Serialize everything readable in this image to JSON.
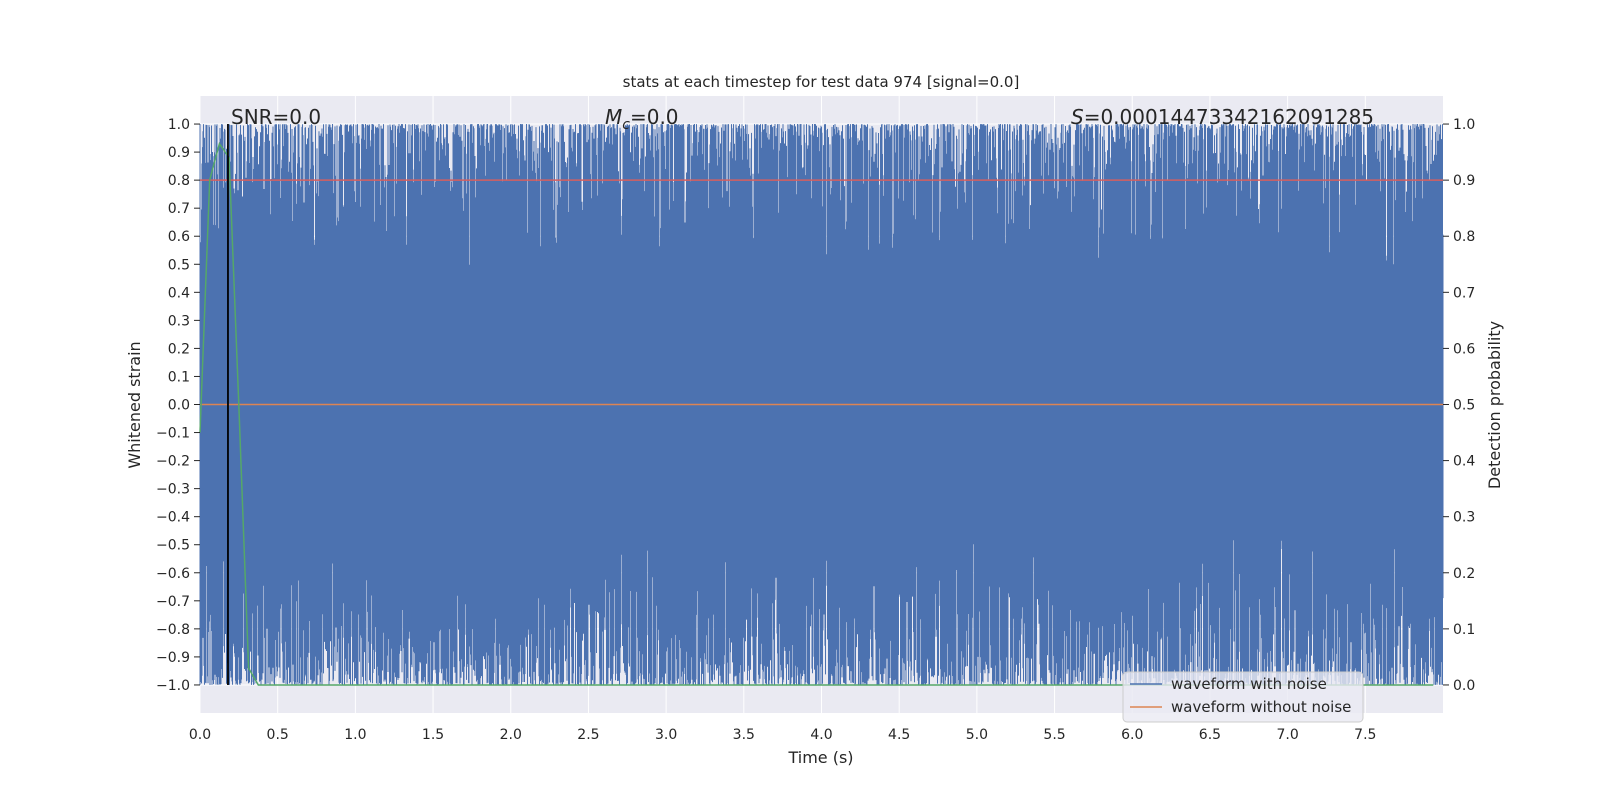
{
  "chart_data": {
    "type": "line",
    "title": "stats at each timestep for test data 974 [signal=0.0]",
    "xlabel": "Time (s)",
    "ylabel": "Whitened strain",
    "y2label": "Detection probability",
    "xlim": [
      0.0,
      8.0
    ],
    "ylim": [
      -1.1,
      1.1
    ],
    "y2lim": [
      -0.05,
      1.05
    ],
    "x_ticks": [
      0.0,
      0.5,
      1.0,
      1.5,
      2.0,
      2.5,
      3.0,
      3.5,
      4.0,
      4.5,
      5.0,
      5.5,
      6.0,
      6.5,
      7.0,
      7.5
    ],
    "x_tick_labels": [
      "0.0",
      "0.5",
      "1.0",
      "1.5",
      "2.0",
      "2.5",
      "3.0",
      "3.5",
      "4.0",
      "4.5",
      "5.0",
      "5.5",
      "6.0",
      "6.5",
      "7.0",
      "7.5"
    ],
    "y_ticks": [
      1.0,
      0.9,
      0.8,
      0.7,
      0.6,
      0.5,
      0.4,
      0.3,
      0.2,
      0.1,
      0.0,
      -0.1,
      -0.2,
      -0.3,
      -0.4,
      -0.5,
      -0.6,
      -0.7,
      -0.8,
      -0.9,
      -1.0
    ],
    "y_tick_labels": [
      "1.0",
      "0.9",
      "0.8",
      "0.7",
      "0.6",
      "0.5",
      "0.4",
      "0.3",
      "0.2",
      "0.1",
      "0.0",
      "−0.1",
      "−0.2",
      "−0.3",
      "−0.4",
      "−0.5",
      "−0.6",
      "−0.7",
      "−0.8",
      "−0.9",
      "−1.0"
    ],
    "y2_ticks": [
      1.0,
      0.9,
      0.8,
      0.7,
      0.6,
      0.5,
      0.4,
      0.3,
      0.2,
      0.1,
      0.0
    ],
    "y2_tick_labels": [
      "1.0",
      "0.9",
      "0.8",
      "0.7",
      "0.6",
      "0.5",
      "0.4",
      "0.3",
      "0.2",
      "0.1",
      "0.0"
    ],
    "grid": true,
    "legend_position": "lower-right",
    "annotations": {
      "snr": "SNR=0.0",
      "mc_symbol": "M",
      "mc_sub": "c",
      "mc_value": "=0.0",
      "s_symbol": "S",
      "s_value": "=0.00014473342162091285"
    },
    "series": [
      {
        "name": "waveform with noise",
        "color": "#4c72b0",
        "kind": "noise",
        "y_range": [
          -1.0,
          1.0
        ]
      },
      {
        "name": "waveform without noise",
        "color": "#dd8452",
        "kind": "constant",
        "y": 0.0
      },
      {
        "color": "#55a868",
        "axis": "right",
        "x": [
          0.0,
          0.0625,
          0.125,
          0.1875,
          0.25,
          0.3125,
          0.375,
          0.4375,
          7.9375
        ],
        "y": [
          0.45,
          0.9,
          0.965,
          0.94,
          0.5,
          0.03,
          0.0,
          0.0,
          0.0
        ]
      },
      {
        "color": "#d65f5f",
        "axis": "right",
        "kind": "threshold",
        "y": 0.9
      }
    ],
    "marker_time": 0.18,
    "marker_color": "#000000"
  }
}
